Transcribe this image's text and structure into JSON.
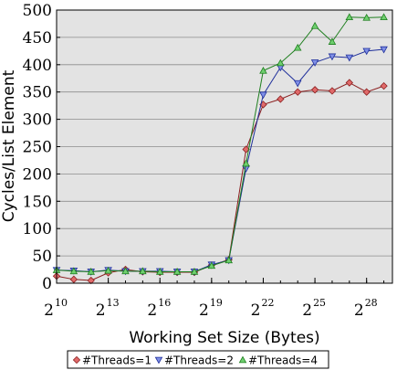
{
  "chart_data": {
    "type": "line",
    "title": "",
    "xlabel": "Working Set Size (Bytes)",
    "ylabel": "Cycles/List Element",
    "x": [
      10,
      11,
      12,
      13,
      14,
      15,
      16,
      17,
      18,
      19,
      20,
      21,
      22,
      23,
      24,
      25,
      26,
      27,
      28,
      29
    ],
    "x_scale": "log2",
    "xlim": [
      10,
      29.5
    ],
    "ylim": [
      0,
      500
    ],
    "x_ticks": [
      {
        "exp": 10,
        "base": "2",
        "power": "10"
      },
      {
        "exp": 13,
        "base": "2",
        "power": "13"
      },
      {
        "exp": 16,
        "base": "2",
        "power": "16"
      },
      {
        "exp": 19,
        "base": "2",
        "power": "19"
      },
      {
        "exp": 22,
        "base": "2",
        "power": "22"
      },
      {
        "exp": 25,
        "base": "2",
        "power": "25"
      },
      {
        "exp": 28,
        "base": "2",
        "power": "28"
      }
    ],
    "y_ticks": [
      "0",
      "50",
      "100",
      "150",
      "200",
      "250",
      "300",
      "350",
      "400",
      "450",
      "500"
    ],
    "grid": "horizontal",
    "background": "#e3e3e3",
    "legend_position": "bottom",
    "series": [
      {
        "name": "#Threads=1",
        "color": "#8b1f1f",
        "marker": "diamond",
        "fill": "#e06a6a",
        "values": [
          13,
          7,
          5,
          19,
          25,
          21,
          20,
          20,
          20,
          33,
          43,
          245,
          327,
          337,
          350,
          354,
          352,
          367,
          350,
          361
        ]
      },
      {
        "name": "#Threads=2",
        "color": "#1f2f9b",
        "marker": "triangle-down",
        "fill": "#7f8fe6",
        "values": [
          24,
          23,
          21,
          24,
          22,
          22,
          22,
          21,
          21,
          34,
          42,
          210,
          345,
          395,
          366,
          404,
          415,
          413,
          425,
          428
        ]
      },
      {
        "name": "#Threads=4",
        "color": "#1f7f1f",
        "marker": "triangle-up",
        "fill": "#6fcf6f",
        "values": [
          24,
          22,
          21,
          23,
          22,
          22,
          21,
          21,
          21,
          32,
          42,
          219,
          389,
          403,
          431,
          471,
          442,
          487,
          486,
          487
        ]
      }
    ]
  }
}
